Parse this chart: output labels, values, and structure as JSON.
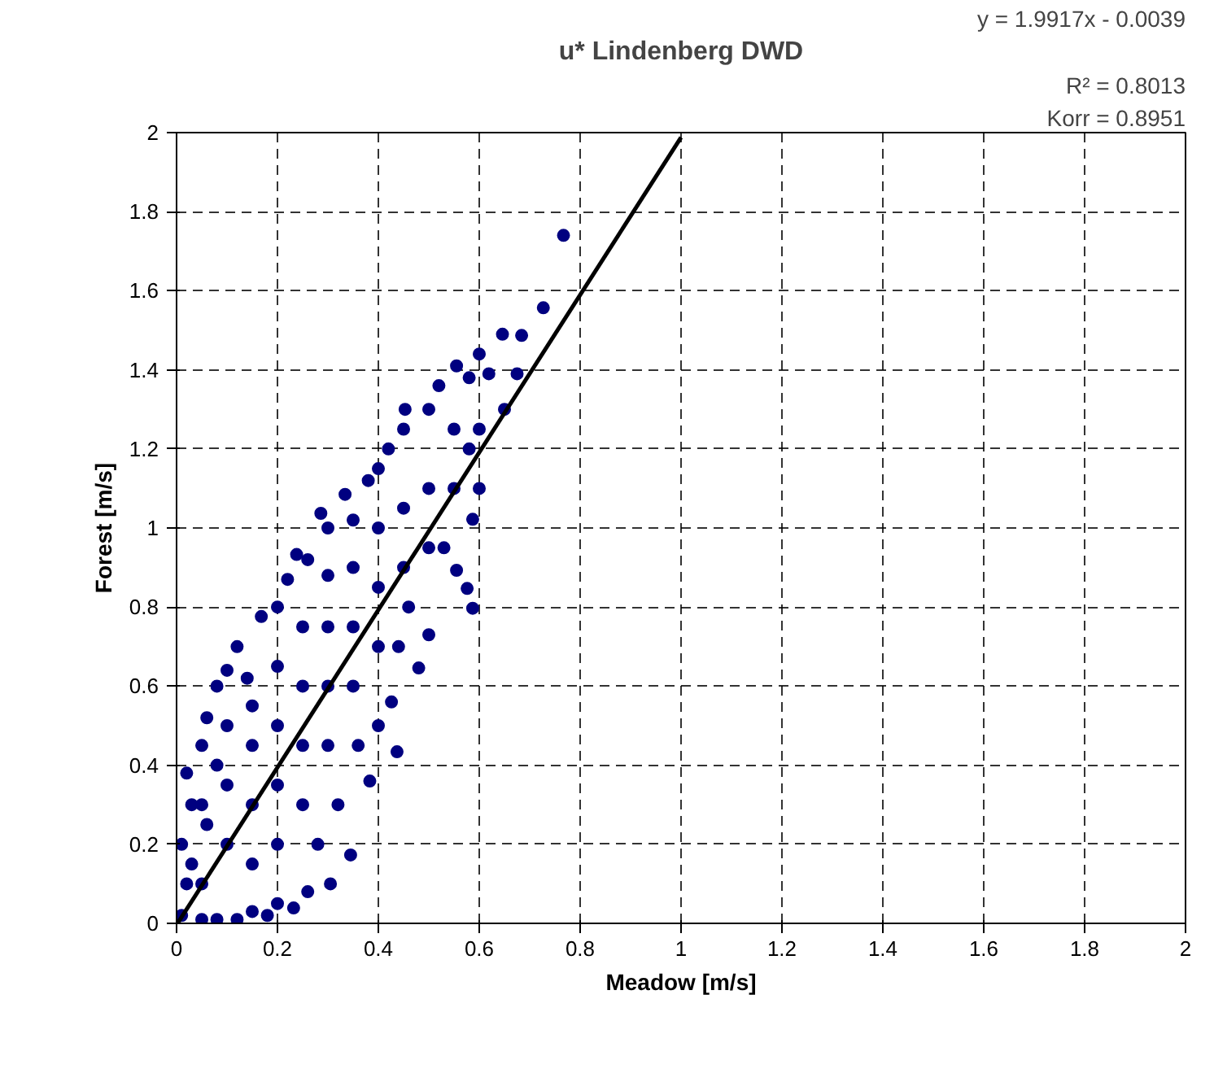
{
  "chart_data": {
    "type": "scatter",
    "title": "u* Lindenberg DWD",
    "xlabel": "Meadow [m/s]",
    "ylabel": "Forest [m/s]",
    "annotations": [
      "y = 1.9917x - 0.0039",
      "R² = 0.8013",
      "Korr = 0.8951"
    ],
    "xlim": [
      0,
      2
    ],
    "ylim": [
      0,
      2
    ],
    "xticks": [
      0,
      0.2,
      0.4,
      0.6,
      0.8,
      1,
      1.2,
      1.4,
      1.6,
      1.8,
      2
    ],
    "yticks": [
      0,
      0.2,
      0.4,
      0.6,
      0.8,
      1,
      1.2,
      1.4,
      1.6,
      1.8,
      2
    ],
    "grid": true,
    "series": [
      {
        "marker": "circle",
        "color": "#000080",
        "x": [
          0.01,
          0.02,
          0.01,
          0.03,
          0.02,
          0.05,
          0.06,
          0.08,
          0.1,
          0.12,
          0.168,
          0.14,
          0.2,
          0.238,
          0.22,
          0.26,
          0.286,
          0.3,
          0.334,
          0.35,
          0.38,
          0.4,
          0.42,
          0.453,
          0.45,
          0.5,
          0.52,
          0.555,
          0.58,
          0.6,
          0.619,
          0.646,
          0.684,
          0.675,
          0.727,
          0.767,
          0.6,
          0.58,
          0.587,
          0.555,
          0.576,
          0.587,
          0.53,
          0.5,
          0.48,
          0.46,
          0.44,
          0.426,
          0.437,
          0.4,
          0.383,
          0.36,
          0.345,
          0.32,
          0.305,
          0.28,
          0.26,
          0.232,
          0.2,
          0.18,
          0.15,
          0.12,
          0.08,
          0.05,
          0.05,
          0.06,
          0.1,
          0.1,
          0.1,
          0.15,
          0.15,
          0.15,
          0.15,
          0.2,
          0.2,
          0.2,
          0.2,
          0.25,
          0.25,
          0.25,
          0.25,
          0.3,
          0.3,
          0.3,
          0.3,
          0.35,
          0.35,
          0.35,
          0.4,
          0.4,
          0.4,
          0.45,
          0.45,
          0.5,
          0.5,
          0.55,
          0.55,
          0.6,
          0.65,
          0.05,
          0.08,
          0.03
        ],
        "values": [
          0.02,
          0.1,
          0.2,
          0.3,
          0.38,
          0.45,
          0.52,
          0.6,
          0.64,
          0.7,
          0.776,
          0.62,
          0.8,
          0.933,
          0.87,
          0.92,
          1.037,
          1.0,
          1.085,
          1.02,
          1.12,
          1.15,
          1.2,
          1.3,
          1.25,
          1.3,
          1.36,
          1.41,
          1.38,
          1.44,
          1.39,
          1.49,
          1.487,
          1.39,
          1.557,
          1.74,
          1.25,
          1.2,
          1.022,
          0.893,
          0.847,
          0.797,
          0.95,
          0.73,
          0.646,
          0.8,
          0.7,
          0.56,
          0.434,
          0.5,
          0.36,
          0.45,
          0.173,
          0.3,
          0.1,
          0.2,
          0.08,
          0.039,
          0.05,
          0.02,
          0.03,
          0.01,
          0.01,
          0.01,
          0.1,
          0.25,
          0.2,
          0.35,
          0.5,
          0.15,
          0.3,
          0.45,
          0.55,
          0.2,
          0.35,
          0.5,
          0.65,
          0.3,
          0.45,
          0.6,
          0.75,
          0.45,
          0.6,
          0.75,
          0.88,
          0.6,
          0.75,
          0.9,
          0.7,
          0.85,
          1.0,
          0.9,
          1.05,
          0.95,
          1.1,
          1.1,
          1.25,
          1.1,
          1.3,
          0.3,
          0.4,
          0.15
        ]
      },
      {
        "type": "line",
        "marker": "none",
        "line_style": "solid",
        "color": "#000000",
        "x": [
          0.002,
          1.0
        ],
        "values": [
          0.0,
          1.988
        ]
      }
    ]
  }
}
